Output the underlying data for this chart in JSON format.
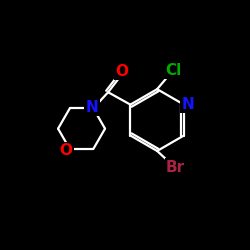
{
  "bg_color": "#000000",
  "bond_color": "#ffffff",
  "atom_colors": {
    "N": "#1414ff",
    "O": "#ff0000",
    "Cl": "#00aa00",
    "Br": "#aa2244",
    "C": "#ffffff"
  },
  "figsize": [
    2.5,
    2.5
  ],
  "dpi": 100,
  "lw": 1.6,
  "fontsize": 11
}
